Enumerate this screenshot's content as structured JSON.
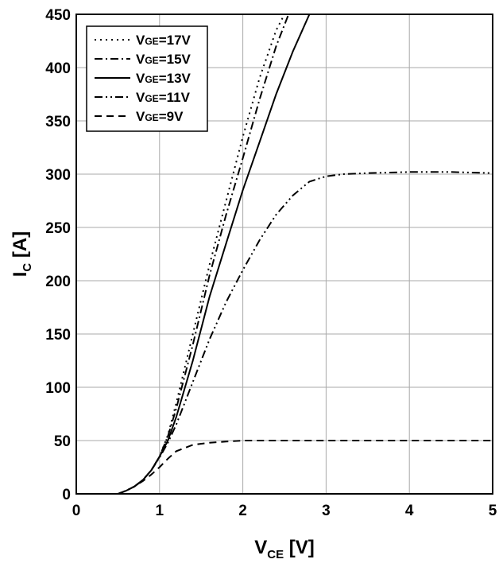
{
  "chart_data": {
    "type": "line",
    "xlabel": {
      "main": "V",
      "sub": "CE",
      "unit": " [V]"
    },
    "ylabel": {
      "main": "I",
      "sub": "C",
      "unit": " [A]"
    },
    "xlim": [
      0,
      5
    ],
    "ylim": [
      0,
      450
    ],
    "xticks": [
      "0",
      "1",
      "2",
      "3",
      "4",
      "5"
    ],
    "yticks": [
      "0",
      "50",
      "100",
      "150",
      "200",
      "250",
      "300",
      "350",
      "400",
      "450"
    ],
    "grid": true,
    "legend_position": "top-left",
    "series": [
      {
        "name": "VGE=17V",
        "label_main": "V",
        "label_sub": "GE",
        "label_rest": "=17V",
        "dash": "dotted",
        "x": [
          0.5,
          0.6,
          0.7,
          0.8,
          0.9,
          1.0,
          1.1,
          1.2,
          1.4,
          1.6,
          1.8,
          2.0,
          2.2,
          2.4,
          2.5
        ],
        "y": [
          0,
          3,
          7,
          13,
          22,
          35,
          55,
          85,
          150,
          215,
          275,
          335,
          390,
          435,
          450
        ]
      },
      {
        "name": "VGE=15V",
        "label_main": "V",
        "label_sub": "GE",
        "label_rest": "=15V",
        "dash": "dashdot",
        "x": [
          0.5,
          0.6,
          0.7,
          0.8,
          0.9,
          1.0,
          1.1,
          1.2,
          1.4,
          1.6,
          1.8,
          2.0,
          2.2,
          2.4,
          2.55
        ],
        "y": [
          0,
          3,
          7,
          13,
          22,
          35,
          54,
          80,
          140,
          205,
          262,
          315,
          370,
          420,
          450
        ]
      },
      {
        "name": "VGE=13V",
        "label_main": "V",
        "label_sub": "GE",
        "label_rest": "=13V",
        "dash": "solid",
        "x": [
          0.5,
          0.6,
          0.7,
          0.8,
          0.9,
          1.0,
          1.1,
          1.2,
          1.4,
          1.6,
          1.8,
          2.0,
          2.2,
          2.4,
          2.6,
          2.8
        ],
        "y": [
          0,
          3,
          7,
          13,
          22,
          35,
          50,
          72,
          125,
          185,
          235,
          285,
          330,
          375,
          415,
          450
        ]
      },
      {
        "name": "VGE=11V",
        "label_main": "V",
        "label_sub": "GE",
        "label_rest": "=11V",
        "dash": "dashdotdot",
        "x": [
          0.5,
          0.6,
          0.7,
          0.8,
          0.9,
          1.0,
          1.1,
          1.2,
          1.4,
          1.6,
          1.8,
          2.0,
          2.2,
          2.4,
          2.6,
          2.8,
          3.0,
          3.2,
          3.5,
          4.0,
          4.5,
          5.0
        ],
        "y": [
          0,
          3,
          7,
          13,
          22,
          34,
          48,
          65,
          105,
          145,
          180,
          210,
          238,
          262,
          280,
          293,
          298,
          300,
          301,
          302,
          302,
          301
        ]
      },
      {
        "name": "VGE=9V",
        "label_main": "V",
        "label_sub": "GE",
        "label_rest": "=9V",
        "dash": "dashed",
        "x": [
          0.5,
          0.6,
          0.7,
          0.8,
          0.9,
          1.0,
          1.1,
          1.2,
          1.4,
          1.6,
          1.8,
          2.0,
          2.5,
          3.0,
          4.0,
          5.0
        ],
        "y": [
          0,
          3,
          7,
          12,
          18,
          25,
          33,
          40,
          46,
          48,
          49,
          50,
          50,
          50,
          50,
          50
        ]
      }
    ]
  }
}
